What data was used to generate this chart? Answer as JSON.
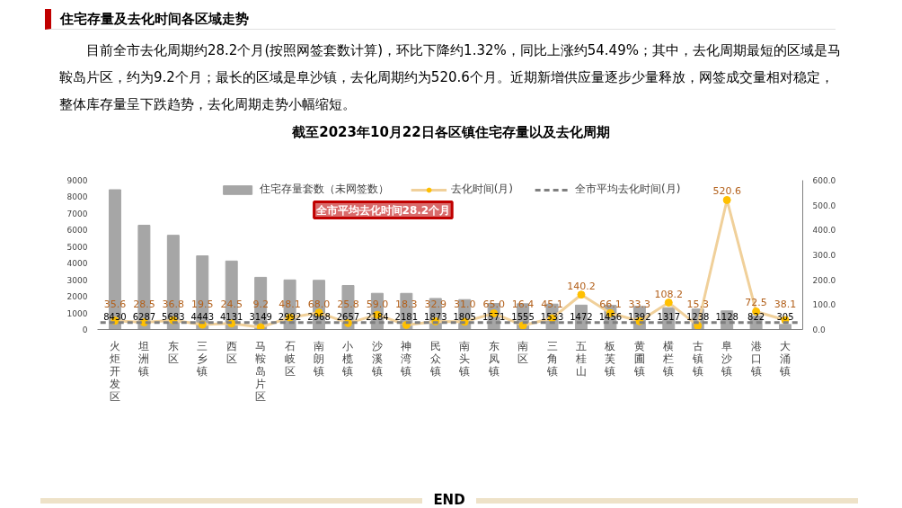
{
  "chart_data": {
    "type": "bar",
    "title": "截至2023年10月22日各区镇住宅存量以及去化周期",
    "categories": [
      "火炬开发区",
      "坦洲镇",
      "东区",
      "三乡镇",
      "西区",
      "马鞍岛片区",
      "石岐区",
      "南朗镇",
      "小榄镇",
      "沙溪镇",
      "神湾镇",
      "民众镇",
      "南头镇",
      "东凤镇",
      "南区",
      "三角镇",
      "五桂山",
      "板芙镇",
      "黄圃镇",
      "横栏镇",
      "古镇镇",
      "阜沙镇",
      "港口镇",
      "大涌镇"
    ],
    "series": [
      {
        "name": "住宅存量套数（未网签数）",
        "color": "#a6a6a6",
        "values": [
          8430,
          6287,
          5683,
          4443,
          4131,
          3149,
          2992,
          2968,
          2657,
          2184,
          2181,
          1873,
          1805,
          1571,
          1555,
          1533,
          1472,
          1456,
          1392,
          1317,
          1238,
          1128,
          822,
          305
        ],
        "value_labels": [
          "8430",
          "6287",
          "5683",
          "4443",
          "4131",
          "3149",
          "2992",
          "2968",
          "2657",
          "2184",
          "2181",
          "1873",
          "1805",
          "1571",
          "1555",
          "1533",
          "1472",
          "1456",
          "1392",
          "1317",
          "1238",
          "1128",
          "822",
          "305"
        ]
      },
      {
        "name": "去化时间(月)",
        "type": "line",
        "axis": "y2",
        "color": "#f0d09a",
        "marker": "circle",
        "values": [
          35.6,
          28.5,
          36.8,
          19.5,
          24.5,
          9.2,
          48.1,
          68.0,
          25.8,
          59.0,
          18.3,
          32.9,
          31.0,
          65.0,
          16.4,
          45.1,
          140.2,
          66.1,
          33.3,
          108.2,
          15.3,
          520.6,
          72.5,
          38.1
        ],
        "value_labels": [
          "35.6",
          "28.5",
          "36.8",
          "19.5",
          "24.5",
          "9.2",
          "48.1",
          "68.0",
          "25.8",
          "59.0",
          "18.3",
          "32.9",
          "31.0",
          "65.0",
          "16.4",
          "45.1",
          "140.2",
          "66.1",
          "33.3",
          "108.2",
          "15.3",
          "520.6",
          "72.5",
          "38.1"
        ]
      }
    ],
    "ylim": [
      0,
      9000
    ],
    "yticks": [
      0,
      1000,
      2000,
      3000,
      4000,
      5000,
      6000,
      7000,
      8000,
      9000
    ],
    "y2lim": [
      0,
      600
    ],
    "y2ticks": [
      {
        "value": 0,
        "label": "0.0"
      },
      {
        "value": 100,
        "label": "100.0"
      },
      {
        "value": 200,
        "label": "200.0"
      },
      {
        "value": 300,
        "label": "300.0"
      },
      {
        "value": 400,
        "label": "400.0"
      },
      {
        "value": 500,
        "label": "500.0"
      },
      {
        "value": 600,
        "label": "600.0"
      }
    ],
    "ref_lines": [
      {
        "axis": "y2",
        "value": 28.2,
        "label": "全市平均去化时间(月)",
        "color": "#7f7f7f",
        "line_style": "dashed"
      }
    ],
    "legend": "top",
    "grid": false,
    "annotations": [
      "住宅存量及去化时间各区域走势",
      "目前全市去化周期约28.2个月(按照网签套数计算)，环比下降约1.32%，同比上涨约54.49%；其中，去化周期最短的区域是马鞍岛片区，约为9.2个月；最长的区域是阜沙镇，去化周期约为520.6个月。近期新增供应量逐步少量释放，网签成交量相对稳定，整体库存量呈下跌趋势，去化周期走势小幅缩短。",
      "全市平均去化时间28.2个月",
      "END"
    ]
  }
}
